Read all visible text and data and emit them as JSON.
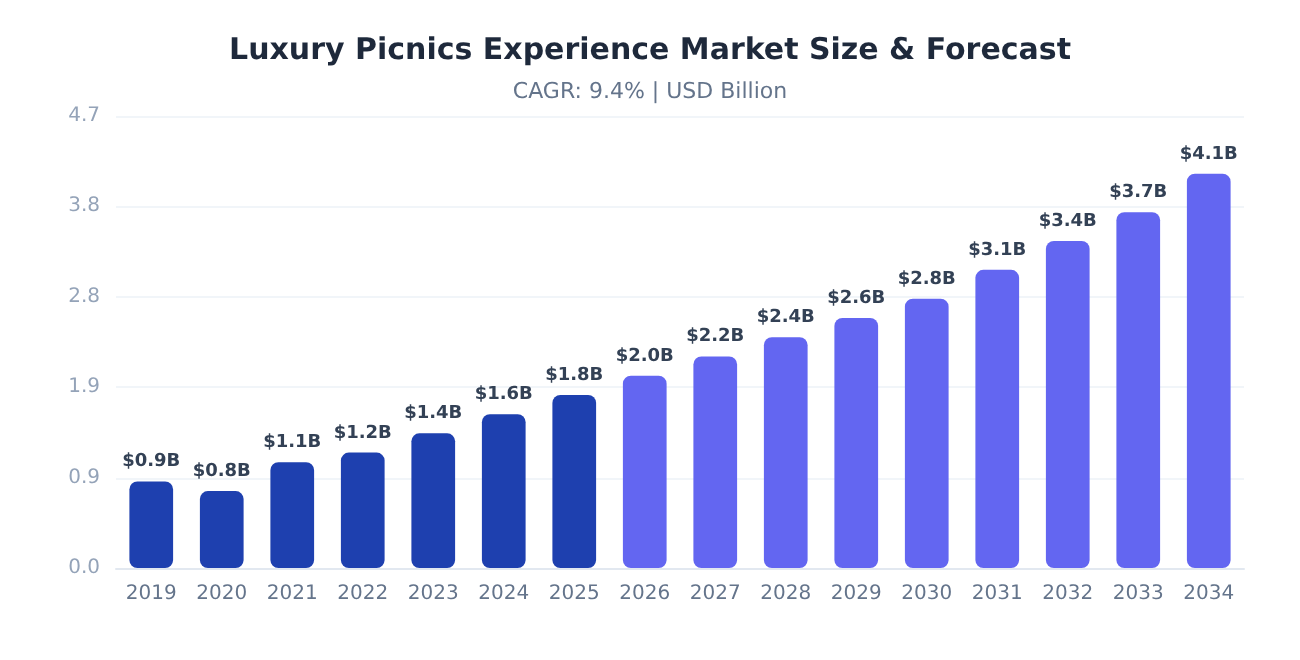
{
  "chart_data": {
    "type": "bar",
    "title": "Luxury Picnics Experience Market Size & Forecast",
    "subtitle": "CAGR: 9.4% | USD Billion",
    "categories": [
      "2019",
      "2020",
      "2021",
      "2022",
      "2023",
      "2024",
      "2025",
      "2026",
      "2027",
      "2028",
      "2029",
      "2030",
      "2031",
      "2032",
      "2033",
      "2034"
    ],
    "values": [
      0.9,
      0.8,
      1.1,
      1.2,
      1.4,
      1.6,
      1.8,
      2.0,
      2.2,
      2.4,
      2.6,
      2.8,
      3.1,
      3.4,
      3.7,
      4.1
    ],
    "value_labels": [
      "$0.9B",
      "$0.8B",
      "$1.1B",
      "$1.2B",
      "$1.4B",
      "$1.6B",
      "$1.8B",
      "$2.0B",
      "$2.2B",
      "$2.4B",
      "$2.6B",
      "$2.8B",
      "$3.1B",
      "$3.4B",
      "$3.7B",
      "$4.1B"
    ],
    "colors": [
      "#1e40af",
      "#1e40af",
      "#1e40af",
      "#1e40af",
      "#1e40af",
      "#1e40af",
      "#1e40af",
      "#6366f1",
      "#6366f1",
      "#6366f1",
      "#6366f1",
      "#6366f1",
      "#6366f1",
      "#6366f1",
      "#6366f1",
      "#6366f1"
    ],
    "ylim": [
      0,
      4.7
    ],
    "yticks": [
      {
        "value": 0,
        "label": "0.0"
      },
      {
        "value": 0.94,
        "label": "0.9"
      },
      {
        "value": 1.88,
        "label": "1.9"
      },
      {
        "value": 2.82,
        "label": "2.8"
      },
      {
        "value": 3.76,
        "label": "3.8"
      },
      {
        "value": 4.7,
        "label": "4.7"
      }
    ],
    "grid": "y"
  }
}
